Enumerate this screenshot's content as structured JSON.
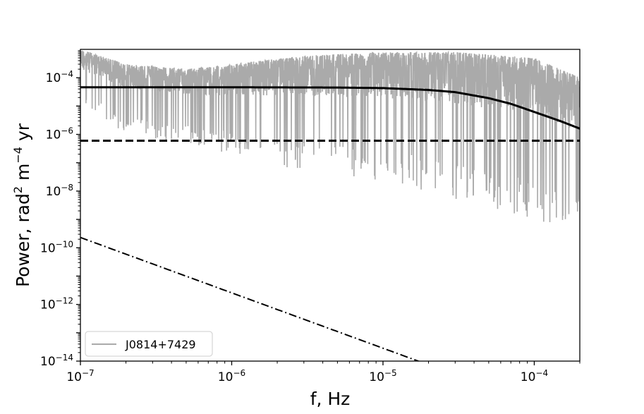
{
  "chart_data": {
    "type": "line",
    "xlabel": "f, Hz",
    "ylabel": {
      "parts": [
        "Power, rad",
        "2",
        " m",
        "−4",
        " yr"
      ]
    },
    "x_scale": "log",
    "y_scale": "log",
    "xlim": [
      1e-07,
      0.0002
    ],
    "ylim": [
      1e-14,
      0.001
    ],
    "grid": false,
    "legend_placement": "lower-left",
    "x_ticks": [
      {
        "value": 1e-07,
        "base": "10",
        "exp": "−7"
      },
      {
        "value": 1e-06,
        "base": "10",
        "exp": "−6"
      },
      {
        "value": 1e-05,
        "base": "10",
        "exp": "−5"
      },
      {
        "value": 0.0001,
        "base": "10",
        "exp": "−4"
      }
    ],
    "y_ticks": [
      {
        "value": 1e-14,
        "base": "10",
        "exp": "−14"
      },
      {
        "value": 1e-12,
        "base": "10",
        "exp": "−12"
      },
      {
        "value": 1e-10,
        "base": "10",
        "exp": "−10"
      },
      {
        "value": 1e-08,
        "base": "10",
        "exp": "−8"
      },
      {
        "value": 1e-06,
        "base": "10",
        "exp": "−6"
      },
      {
        "value": 0.0001,
        "base": "10",
        "exp": "−4"
      }
    ],
    "series": [
      {
        "name": "J0814+7429",
        "style": "solid",
        "color": "#aaaaaa",
        "envelope": {
          "x": [
            1e-07,
            2e-07,
            5e-07,
            1e-06,
            3e-06,
            1e-05,
            3e-05,
            0.0001,
            0.0002
          ],
          "upper": [
            0.001,
            0.0003,
            0.0002,
            0.0003,
            0.0006,
            0.0008,
            0.0008,
            0.0005,
            0.0001
          ],
          "lower": [
            1e-05,
            1e-06,
            5e-07,
            2e-07,
            5e-08,
            2e-08,
            5e-09,
            1e-09,
            3e-10
          ]
        }
      },
      {
        "style": "solid",
        "color": "#000000",
        "x": [
          1e-07,
          1e-06,
          5e-06,
          1e-05,
          2e-05,
          3e-05,
          5e-05,
          7e-05,
          0.0001,
          0.00015,
          0.0002
        ],
        "y": [
          4.6e-05,
          4.6e-05,
          4.5e-05,
          4.3e-05,
          3.7e-05,
          3.1e-05,
          1.9e-05,
          1.2e-05,
          6.2e-06,
          2.9e-06,
          1.6e-06
        ]
      },
      {
        "style": "dashed",
        "color": "#000000",
        "x": [
          1e-07,
          0.0002
        ],
        "y": [
          6e-07,
          6e-07
        ]
      },
      {
        "style": "dashdot",
        "color": "#000000",
        "x": [
          1e-07,
          0.0002
        ],
        "y": [
          2.3e-10,
          8.2e-17
        ]
      }
    ]
  }
}
